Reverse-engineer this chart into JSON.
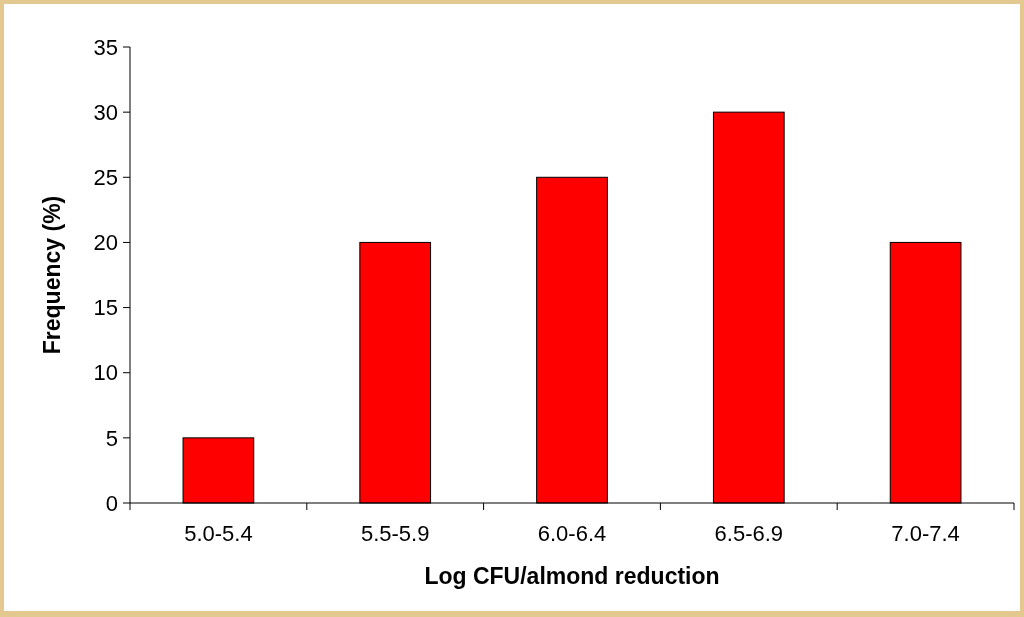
{
  "chart_data": {
    "type": "bar",
    "xlabel": "Log CFU/almond reduction",
    "ylabel": "Frequency (%)",
    "categories": [
      "5.0-5.4",
      "5.5-5.9",
      "6.0-6.4",
      "6.5-6.9",
      "7.0-7.4"
    ],
    "values": [
      5,
      20,
      25,
      30,
      20
    ],
    "color": "#ff0000",
    "ylim": [
      0,
      35
    ],
    "yticks": [
      0,
      5,
      10,
      15,
      20,
      25,
      30,
      35
    ],
    "grid": false
  }
}
